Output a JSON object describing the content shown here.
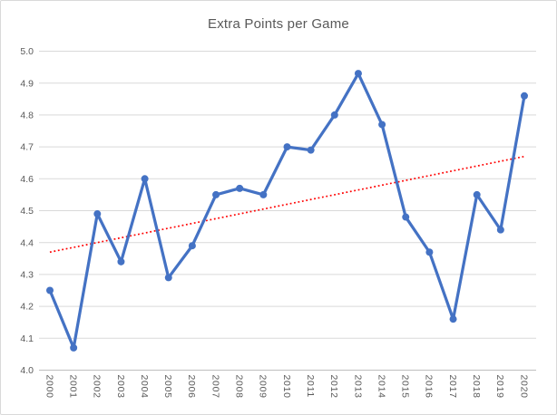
{
  "window": {
    "background": "#ffffff",
    "border_color": "#d9d9d9"
  },
  "chart_data": {
    "type": "line",
    "title": "Extra Points per Game",
    "xlabel": "",
    "ylabel": "",
    "x": [
      2000,
      2001,
      2002,
      2003,
      2004,
      2005,
      2006,
      2007,
      2008,
      2009,
      2010,
      2011,
      2012,
      2013,
      2014,
      2015,
      2016,
      2017,
      2018,
      2019,
      2020
    ],
    "series": [
      {
        "name": "Extra Points per Game",
        "color": "#4472C4",
        "marker": "circle",
        "values": [
          4.25,
          4.07,
          4.49,
          4.34,
          4.6,
          4.29,
          4.39,
          4.55,
          4.57,
          4.55,
          4.7,
          4.69,
          4.8,
          4.93,
          4.77,
          4.48,
          4.37,
          4.16,
          4.55,
          4.44,
          4.86
        ]
      }
    ],
    "trendline": {
      "type": "linear",
      "style": "dotted",
      "color": "#FF0000",
      "start": 4.37,
      "end": 4.67
    },
    "ylim": [
      4.0,
      5.0
    ],
    "yticks": [
      5.0,
      4.9,
      4.8,
      4.7,
      4.6,
      4.5,
      4.4,
      4.3,
      4.2,
      4.1,
      4.0
    ],
    "grid": true,
    "legend": "none",
    "x_label_rotation_deg": 90,
    "colors": {
      "label_text": "#595959",
      "gridline": "#d9d9d9",
      "axis_line": "#bfbfbf"
    }
  }
}
